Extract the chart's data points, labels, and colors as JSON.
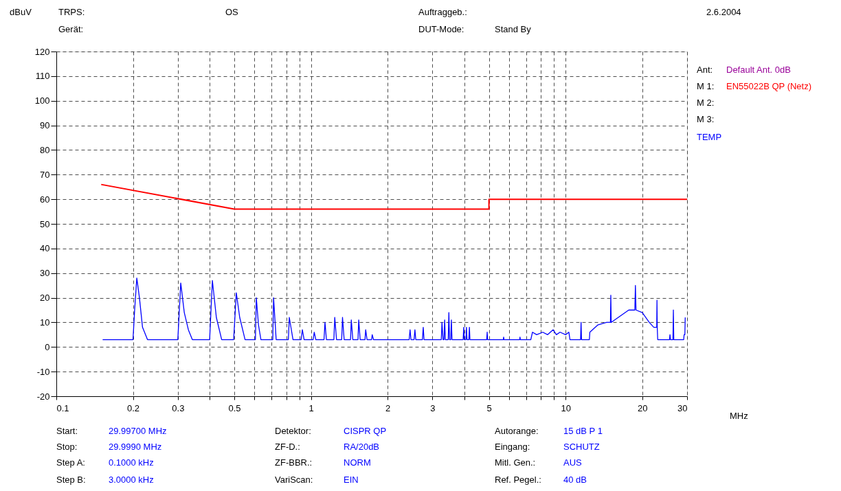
{
  "chart_data": {
    "type": "line",
    "xlabel": "MHz",
    "ylabel": "dBuV",
    "log": "x",
    "grid": true,
    "legend": "top right",
    "line_style": "solid",
    "marker": "none",
    "xlim": [
      0.1,
      30
    ],
    "xticks": [
      0.1,
      0.2,
      0.3,
      {
        "value": 0.4,
        "label": null
      },
      0.5,
      {
        "value": 0.6,
        "label": null
      },
      {
        "value": 0.7,
        "label": null
      },
      {
        "value": 0.8,
        "label": null
      },
      {
        "value": 0.9,
        "label": null
      },
      1,
      2,
      3,
      {
        "value": 4,
        "label": null
      },
      5,
      {
        "value": 6,
        "label": null
      },
      {
        "value": 7,
        "label": null
      },
      {
        "value": 8,
        "label": null
      },
      {
        "value": 9,
        "label": null
      },
      10,
      20,
      30
    ],
    "ylim": [
      -20,
      120
    ],
    "yticks": [
      -20,
      -10,
      0,
      10,
      20,
      30,
      40,
      50,
      60,
      70,
      80,
      90,
      100,
      110,
      120
    ],
    "series": [
      {
        "name": "EN55022B QP (Netz)",
        "color": "#ff0000",
        "x": [
          0.15,
          0.5,
          5,
          5,
          30
        ],
        "values": [
          66,
          56,
          56,
          60,
          60
        ]
      },
      {
        "name": "TEMP",
        "color": "#0000ff",
        "x": [
          0.152,
          0.2,
          0.203,
          0.207,
          0.212,
          0.218,
          0.228,
          0.3,
          0.308,
          0.318,
          0.33,
          0.342,
          0.4,
          0.41,
          0.425,
          0.446,
          0.497,
          0.509,
          0.525,
          0.551,
          0.605,
          0.61,
          0.622,
          0.636,
          0.708,
          0.713,
          0.73,
          0.815,
          0.822,
          0.85,
          0.915,
          0.925,
          0.94,
          1.02,
          1.03,
          1.045,
          1.125,
          1.135,
          1.15,
          1.23,
          1.24,
          1.26,
          1.32,
          1.33,
          1.35,
          1.43,
          1.44,
          1.46,
          1.53,
          1.54,
          1.56,
          1.63,
          1.64,
          1.66,
          1.73,
          1.74,
          1.76,
          2.43,
          2.45,
          2.47,
          2.54,
          2.56,
          2.58,
          2.74,
          2.76,
          2.78,
          3.25,
          3.27,
          3.3,
          3.33,
          3.35,
          3.37,
          3.46,
          3.48,
          3.5,
          3.54,
          3.56,
          3.58,
          3.96,
          3.98,
          4.0,
          4.06,
          4.08,
          4.1,
          4.17,
          4.19,
          4.21,
          4.9,
          4.92,
          4.94,
          5.69,
          5.71,
          5.73,
          6.6,
          6.62,
          6.64,
          7.3,
          7.41,
          7.7,
          8.13,
          8.5,
          8.93,
          9.2,
          9.51,
          10.0,
          10.3,
          10.4,
          11.45,
          11.5,
          11.55,
          12.4,
          12.45,
          13.4,
          14.5,
          15.0,
          15.05,
          15.1,
          16.6,
          17.7,
          18.7,
          18.8,
          18.9,
          20.0,
          21.3,
          22.2,
          22.8,
          22.85,
          22.9,
          23.0,
          25.6,
          25.7,
          25.8,
          26.4,
          26.5,
          26.6,
          29.1,
          29.2,
          29.4,
          29.5
        ],
        "values": [
          3,
          3,
          15,
          28,
          20,
          8,
          3,
          3,
          26,
          14,
          7,
          3,
          3,
          27,
          12,
          3,
          3,
          22,
          12,
          3,
          3,
          20,
          9,
          3,
          3,
          20,
          3,
          3,
          12,
          3,
          3,
          7,
          3,
          3,
          6,
          3,
          3,
          10,
          3,
          3,
          12,
          3,
          3,
          12,
          3,
          3,
          11,
          3,
          3,
          11,
          3,
          3,
          7,
          3,
          3,
          5,
          3,
          3,
          7,
          3,
          3,
          7,
          3,
          3,
          8,
          3,
          3,
          10,
          3,
          3,
          11,
          3,
          3,
          14,
          3,
          3,
          11,
          3,
          3,
          8,
          3,
          3,
          8,
          3,
          3,
          8,
          3,
          3,
          6,
          3,
          3,
          4,
          3,
          3,
          4,
          3,
          3,
          6,
          5,
          6,
          5,
          7,
          5,
          6,
          5,
          6,
          3,
          3,
          10,
          3,
          3,
          6,
          9,
          10,
          10,
          21,
          10,
          13,
          15,
          15,
          25,
          15,
          14,
          10,
          8,
          8,
          19,
          8,
          3,
          3,
          5,
          3,
          3,
          15,
          3,
          3,
          5,
          5,
          12
        ]
      }
    ],
    "annotations": [
      "TRPS:",
      "OS",
      "Gerät:",
      "Auftraggeb.:",
      "DUT-Mode:",
      "Stand By",
      "2.6.2004",
      "Ant:",
      "Default Ant. 0dB",
      "M 1:",
      "M 2:",
      "M 3:",
      "Start:",
      "29.99700  MHz",
      "Stop:",
      "29.9990 MHz",
      "Step A:",
      "0.1000 kHz",
      "Step B:",
      "3.0000 kHz",
      "Detektor:",
      "CISPR QP",
      "ZF-D.:",
      "RA/20dB",
      "ZF-BBR.:",
      "NORM",
      "VariScan:",
      "EIN",
      "Autorange:",
      "15 dB   P 1",
      "Eingang:",
      "SCHUTZ",
      "Mitl. Gen.:",
      "AUS",
      "Ref. Pegel.:",
      "40 dB"
    ]
  }
}
